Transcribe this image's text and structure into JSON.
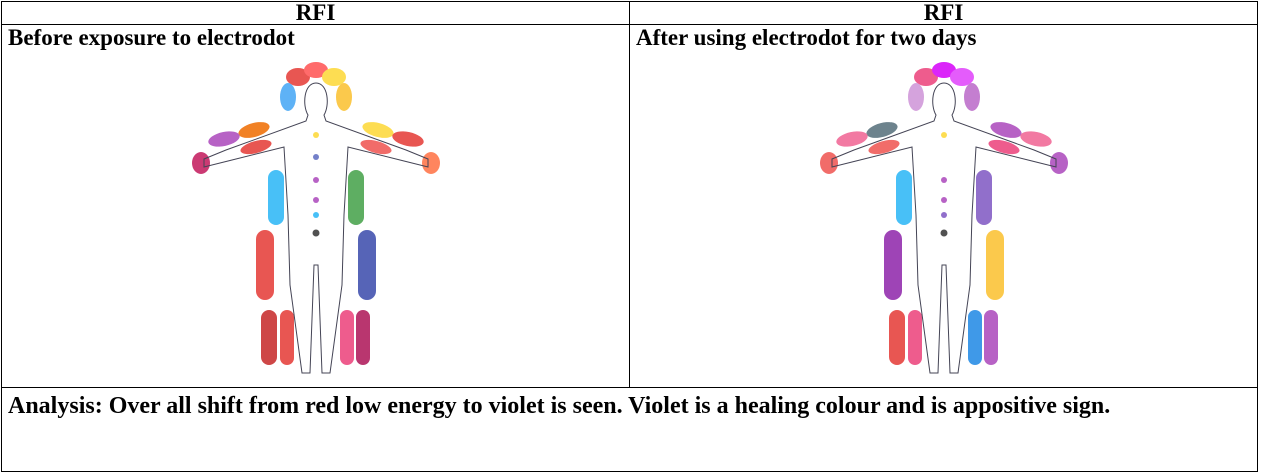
{
  "table": {
    "header": [
      "RFI",
      "RFI"
    ],
    "rows": [
      [
        "Before exposure to electrodot",
        "After using electrodot for two days"
      ]
    ],
    "footer": "Analysis: Over all shift from red low energy to violet is seen. Violet is a healing colour and is appositive sign."
  }
}
